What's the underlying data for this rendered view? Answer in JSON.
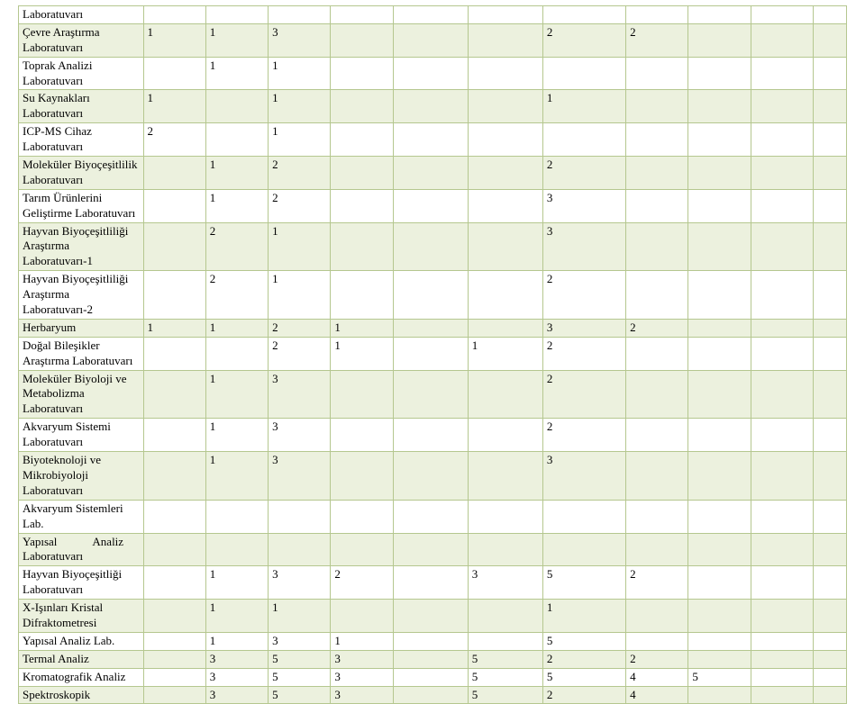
{
  "table": {
    "border_color": "#b5c78f",
    "green_bg": "#ecf1de",
    "white_bg": "#ffffff",
    "font_family": "Times New Roman",
    "font_size_pt": 10,
    "rows": [
      {
        "band": "white",
        "cells": [
          "Laboratuvarı",
          "",
          "",
          "",
          "",
          "",
          "",
          "",
          "",
          "",
          "",
          ""
        ]
      },
      {
        "band": "green",
        "cells": [
          "Çevre Araştırma Laboratuvarı",
          "1",
          "1",
          "3",
          "",
          "",
          "",
          "2",
          "2",
          "",
          "",
          ""
        ]
      },
      {
        "band": "white",
        "cells": [
          "Toprak Analizi Laboratuvarı",
          "",
          "1",
          "1",
          "",
          "",
          "",
          "",
          "",
          "",
          "",
          ""
        ]
      },
      {
        "band": "green",
        "cells": [
          "Su Kaynakları Laboratuvarı",
          "1",
          "",
          "1",
          "",
          "",
          "",
          "1",
          "",
          "",
          "",
          ""
        ]
      },
      {
        "band": "white",
        "cells": [
          "ICP-MS Cihaz Laboratuvarı",
          "2",
          "",
          "1",
          "",
          "",
          "",
          "",
          "",
          "",
          "",
          ""
        ]
      },
      {
        "band": "green",
        "cells": [
          "Moleküler Biyoçeşitlilik Laboratuvarı",
          "",
          "1",
          "2",
          "",
          "",
          "",
          "2",
          "",
          "",
          "",
          ""
        ]
      },
      {
        "band": "white",
        "cells": [
          "Tarım Ürünlerini Geliştirme Laboratuvarı",
          "",
          "1",
          "2",
          "",
          "",
          "",
          "3",
          "",
          "",
          "",
          ""
        ]
      },
      {
        "band": "green",
        "cells": [
          "Hayvan Biyoçeşitliliği Araştırma Laboratuvarı-1",
          "",
          "2",
          "1",
          "",
          "",
          "",
          "3",
          "",
          "",
          "",
          ""
        ]
      },
      {
        "band": "white",
        "cells": [
          "Hayvan Biyoçeşitliliği Araştırma Laboratuvarı-2",
          "",
          "2",
          "1",
          "",
          "",
          "",
          "2",
          "",
          "",
          "",
          ""
        ]
      },
      {
        "band": "green",
        "cells": [
          "Herbaryum",
          "1",
          "1",
          "2",
          "1",
          "",
          "",
          "3",
          "2",
          "",
          "",
          ""
        ]
      },
      {
        "band": "white",
        "cells": [
          "Doğal Bileşikler Araştırma Laboratuvarı",
          "",
          "",
          "2",
          "1",
          "",
          "1",
          "2",
          "",
          "",
          "",
          ""
        ]
      },
      {
        "band": "green",
        "cells": [
          "Moleküler Biyoloji ve Metabolizma Laboratuvarı",
          "",
          "1",
          "3",
          "",
          "",
          "",
          "2",
          "",
          "",
          "",
          ""
        ]
      },
      {
        "band": "white",
        "cells": [
          "Akvaryum Sistemi Laboratuvarı",
          "",
          "1",
          "3",
          "",
          "",
          "",
          "2",
          "",
          "",
          "",
          ""
        ]
      },
      {
        "band": "green",
        "cells": [
          "Biyoteknoloji ve Mikrobiyoloji Laboratuvarı",
          "",
          "1",
          "3",
          "",
          "",
          "",
          "3",
          "",
          "",
          "",
          ""
        ]
      },
      {
        "band": "white",
        "cells": [
          "Akvaryum Sistemleri Lab.",
          "",
          "",
          "",
          "",
          "",
          "",
          "",
          "",
          "",
          "",
          ""
        ]
      },
      {
        "band": "green",
        "cells": [
          "Yapısal            Analiz Laboratuvarı",
          "",
          "",
          "",
          "",
          "",
          "",
          "",
          "",
          "",
          "",
          ""
        ]
      },
      {
        "band": "white",
        "cells": [
          "Hayvan Biyoçeşitliği Laboratuvarı",
          "",
          "1",
          "3",
          "2",
          "",
          "3",
          "5",
          "2",
          "",
          "",
          ""
        ]
      },
      {
        "band": "green",
        "cells": [
          "X-Işınları Kristal Difraktometresi",
          "",
          "1",
          "1",
          "",
          "",
          "",
          "1",
          "",
          "",
          "",
          ""
        ]
      },
      {
        "band": "white",
        "cells": [
          "Yapısal Analiz Lab.",
          "",
          "1",
          "3",
          "1",
          "",
          "",
          "5",
          "",
          "",
          "",
          ""
        ]
      },
      {
        "band": "green",
        "cells": [
          "Termal Analiz",
          "",
          "3",
          "5",
          "3",
          "",
          "5",
          "2",
          "2",
          "",
          "",
          ""
        ]
      },
      {
        "band": "white",
        "cells": [
          "Kromatografik Analiz",
          "",
          "3",
          "5",
          "3",
          "",
          "5",
          "5",
          "4",
          "5",
          "",
          ""
        ]
      },
      {
        "band": "green",
        "cells": [
          "Spektroskopik",
          "",
          "3",
          "5",
          "3",
          "",
          "5",
          "2",
          "4",
          "",
          "",
          ""
        ]
      }
    ]
  }
}
